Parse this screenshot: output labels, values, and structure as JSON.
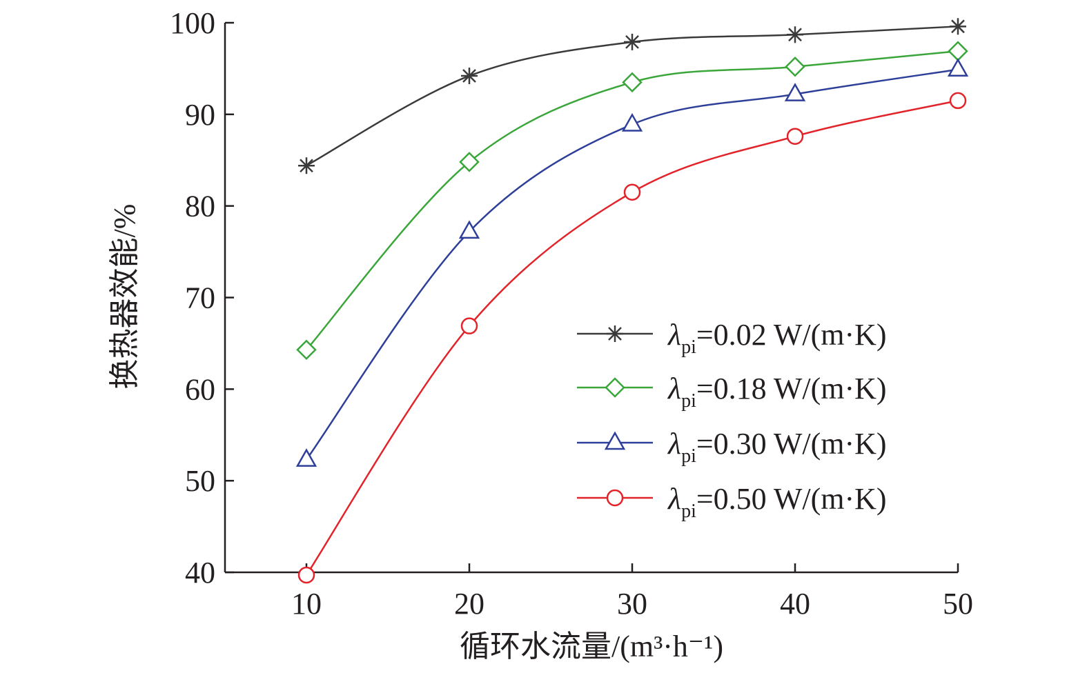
{
  "chart_data": {
    "type": "line",
    "title": "",
    "xlabel": "循环水流量/(m³·h⁻¹)",
    "ylabel": "换热器效能/%",
    "x": [
      10,
      20,
      30,
      40,
      50
    ],
    "xlim": [
      5,
      50
    ],
    "ylim": [
      40,
      100
    ],
    "xticks": [
      "10",
      "20",
      "30",
      "40",
      "50"
    ],
    "yticks": [
      "40",
      "50",
      "60",
      "70",
      "80",
      "90",
      "100"
    ],
    "grid": false,
    "legend_position": "bottom-right",
    "series": [
      {
        "name": "λpi=0.02 W/(m·K)",
        "symbol": "λ",
        "sub": "pi",
        "rest": "=0.02 W/(m·K)",
        "color": "#3a3a3a",
        "marker": "asterisk",
        "values": [
          84.4,
          94.2,
          97.9,
          98.7,
          99.6
        ]
      },
      {
        "name": "λpi=0.18 W/(m·K)",
        "symbol": "λ",
        "sub": "pi",
        "rest": "=0.18 W/(m·K)",
        "color": "#3aa63a",
        "marker": "diamond",
        "values": [
          64.3,
          84.8,
          93.5,
          95.2,
          96.9
        ]
      },
      {
        "name": "λpi=0.30 W/(m·K)",
        "symbol": "λ",
        "sub": "pi",
        "rest": "=0.30 W/(m·K)",
        "color": "#2e3f9a",
        "marker": "triangle",
        "values": [
          52.3,
          77.2,
          88.9,
          92.2,
          94.9
        ]
      },
      {
        "name": "λpi=0.50 W/(m·K)",
        "symbol": "λ",
        "sub": "pi",
        "rest": "=0.50 W/(m·K)",
        "color": "#e3232a",
        "marker": "circle",
        "values": [
          39.7,
          66.9,
          81.5,
          87.6,
          91.5
        ]
      }
    ]
  }
}
